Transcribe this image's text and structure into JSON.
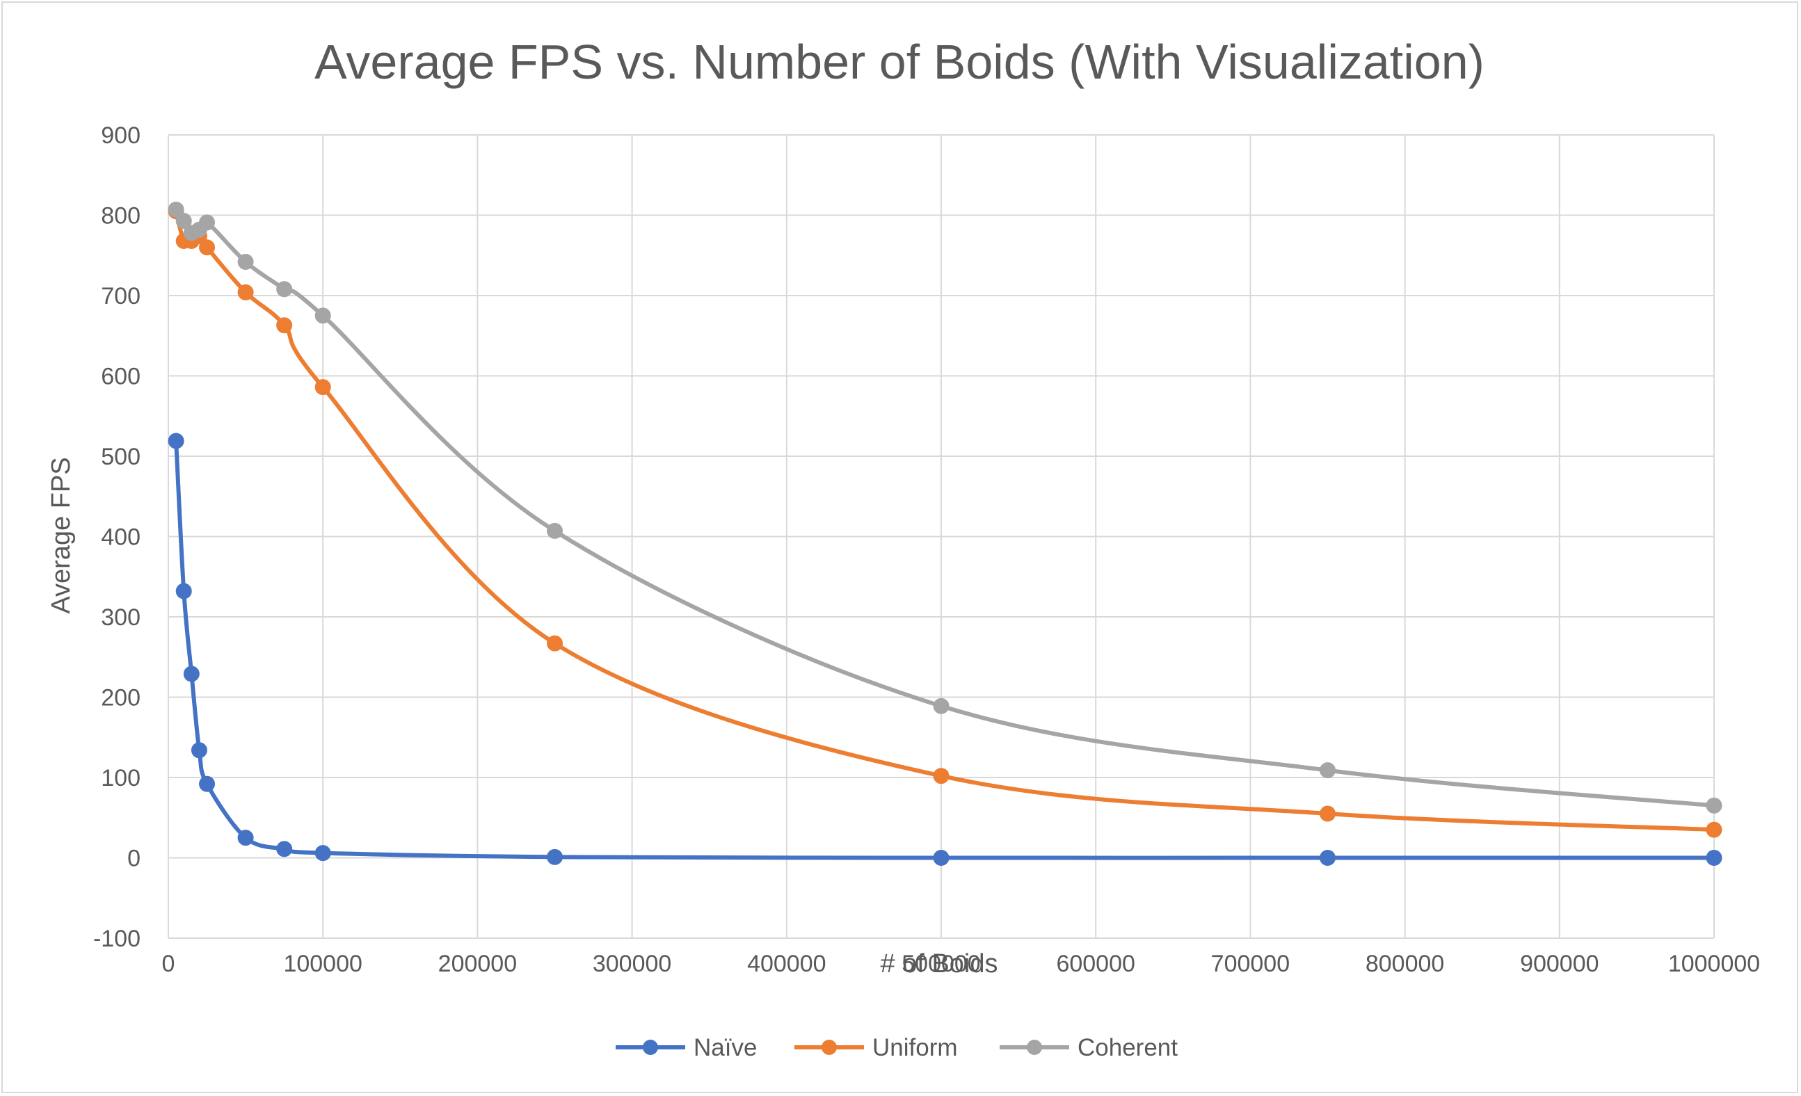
{
  "chart_data": {
    "type": "line",
    "title": "Average FPS vs. Number of Boids (With Visualization)",
    "xlabel": "# of Boids",
    "ylabel": "Average FPS",
    "xlim": [
      0,
      1000000
    ],
    "ylim": [
      -100,
      900
    ],
    "x_ticks": [
      0,
      100000,
      200000,
      300000,
      400000,
      500000,
      600000,
      700000,
      800000,
      900000,
      1000000
    ],
    "y_ticks": [
      -100,
      0,
      100,
      200,
      300,
      400,
      500,
      600,
      700,
      800,
      900
    ],
    "grid": true,
    "smoothed": true,
    "legend_position": "bottom",
    "x": [
      5000,
      10000,
      15000,
      20000,
      25000,
      50000,
      75000,
      100000,
      250000,
      500000,
      750000,
      1000000
    ],
    "series": [
      {
        "name": "Naïve",
        "color": "#4472c4",
        "values": [
          519,
          332,
          229,
          134,
          92,
          25,
          11,
          6,
          1,
          0,
          0,
          0
        ]
      },
      {
        "name": "Uniform",
        "color": "#ed7d31",
        "values": [
          805,
          768,
          768,
          774,
          760,
          704,
          663,
          586,
          267,
          102,
          55,
          35
        ]
      },
      {
        "name": "Coherent",
        "color": "#a5a5a5",
        "values": [
          807,
          793,
          778,
          782,
          791,
          742,
          708,
          675,
          407,
          189,
          109,
          65
        ]
      }
    ]
  }
}
